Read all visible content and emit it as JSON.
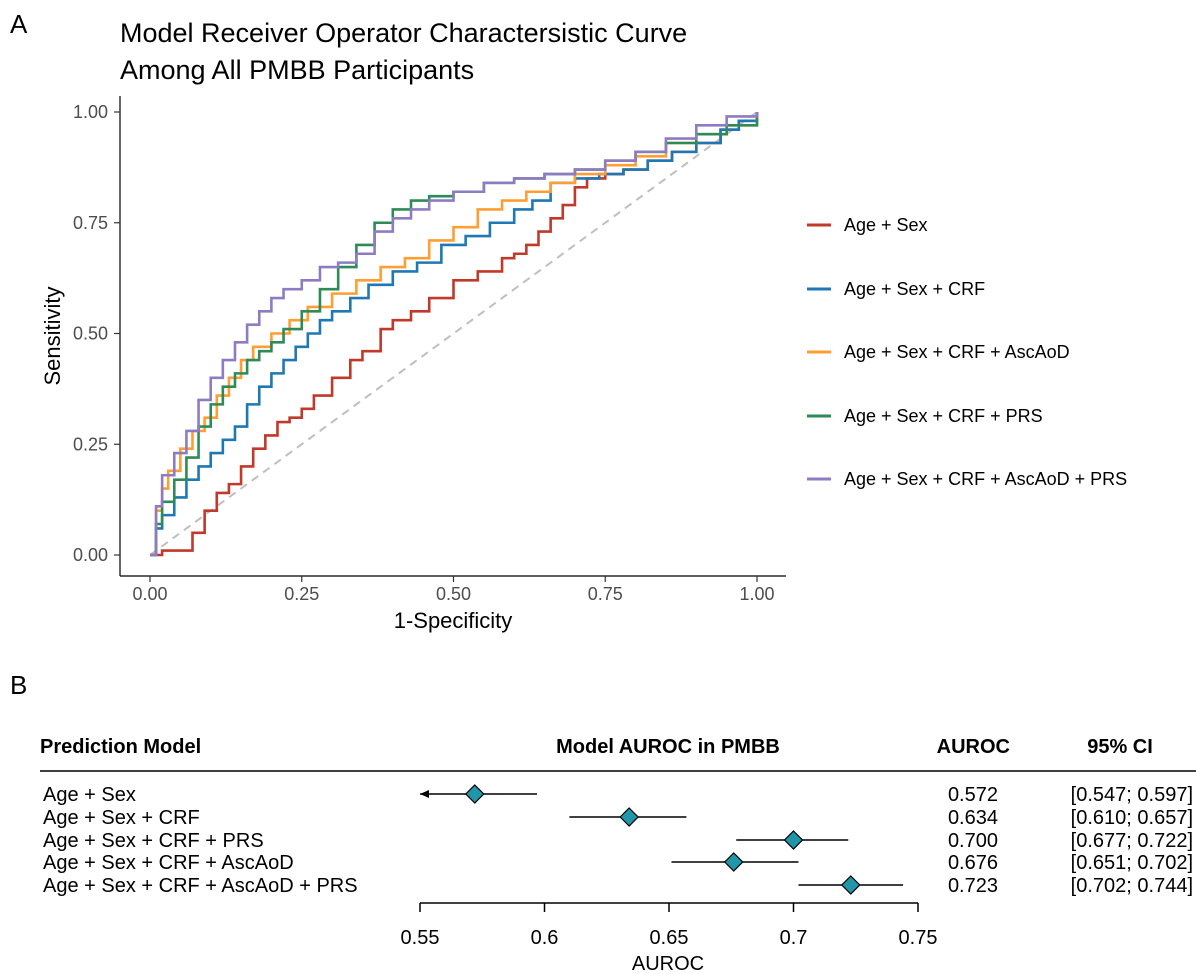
{
  "panel_a": {
    "letter": "A",
    "title_lines": [
      "Model Receiver Operator Charactersistic Curve",
      "Among All PMBB Participants"
    ]
  },
  "panel_b": {
    "letter": "B",
    "headers": {
      "model": "Prediction Model",
      "plot": "Model AUROC in PMBB",
      "auroc": "AUROC",
      "ci": "95% CI"
    }
  },
  "chart_data": [
    {
      "type": "line",
      "title": "Model Receiver Operator Charactersistic Curve Among All PMBB Participants",
      "xlabel": "1-Specificity",
      "ylabel": "Sensitivity",
      "xlim": [
        0,
        1
      ],
      "ylim": [
        0,
        1
      ],
      "x_ticks": [
        "0.00",
        "0.25",
        "0.50",
        "0.75",
        "1.00"
      ],
      "y_ticks": [
        "0.00",
        "0.25",
        "0.50",
        "0.75",
        "1.00"
      ],
      "grid": false,
      "legend_position": "right",
      "reference_line": {
        "x": [
          0,
          1
        ],
        "y": [
          0,
          1
        ],
        "style": "dashed",
        "color": "#bfbfbf"
      },
      "series": [
        {
          "name": "Age + Sex",
          "color": "#c0392b",
          "x": [
            0,
            0.02,
            0.04,
            0.055,
            0.07,
            0.09,
            0.11,
            0.13,
            0.15,
            0.17,
            0.19,
            0.21,
            0.23,
            0.25,
            0.27,
            0.3,
            0.33,
            0.35,
            0.38,
            0.4,
            0.43,
            0.46,
            0.5,
            0.54,
            0.58,
            0.6,
            0.62,
            0.64,
            0.66,
            0.68,
            0.7,
            0.72,
            0.75,
            0.78,
            0.82,
            0.86,
            0.9,
            0.94,
            0.97,
            1.0
          ],
          "y": [
            0,
            0.01,
            0.01,
            0.01,
            0.05,
            0.1,
            0.14,
            0.16,
            0.2,
            0.24,
            0.27,
            0.3,
            0.31,
            0.33,
            0.36,
            0.4,
            0.44,
            0.46,
            0.51,
            0.53,
            0.55,
            0.58,
            0.62,
            0.64,
            0.67,
            0.68,
            0.7,
            0.73,
            0.76,
            0.79,
            0.83,
            0.85,
            0.86,
            0.87,
            0.89,
            0.91,
            0.93,
            0.96,
            0.98,
            1.0
          ]
        },
        {
          "name": "Age + Sex + CRF",
          "color": "#1f78b4",
          "x": [
            0,
            0.01,
            0.02,
            0.04,
            0.06,
            0.08,
            0.1,
            0.12,
            0.14,
            0.16,
            0.18,
            0.2,
            0.22,
            0.24,
            0.26,
            0.28,
            0.3,
            0.33,
            0.36,
            0.4,
            0.44,
            0.48,
            0.52,
            0.56,
            0.6,
            0.63,
            0.66,
            0.7,
            0.74,
            0.78,
            0.82,
            0.86,
            0.9,
            0.94,
            0.97,
            1.0
          ],
          "y": [
            0,
            0.06,
            0.09,
            0.13,
            0.17,
            0.2,
            0.23,
            0.26,
            0.29,
            0.34,
            0.38,
            0.41,
            0.44,
            0.47,
            0.5,
            0.53,
            0.55,
            0.58,
            0.61,
            0.64,
            0.66,
            0.7,
            0.72,
            0.75,
            0.78,
            0.8,
            0.84,
            0.85,
            0.86,
            0.87,
            0.89,
            0.91,
            0.93,
            0.96,
            0.98,
            1.0
          ]
        },
        {
          "name": "Age + Sex + CRF + AscAoD",
          "color": "#ff9f33",
          "x": [
            0,
            0.01,
            0.02,
            0.03,
            0.05,
            0.07,
            0.09,
            0.11,
            0.13,
            0.15,
            0.17,
            0.2,
            0.23,
            0.26,
            0.3,
            0.34,
            0.38,
            0.42,
            0.46,
            0.5,
            0.54,
            0.58,
            0.62,
            0.66,
            0.7,
            0.75,
            0.8,
            0.85,
            0.9,
            0.95,
            1.0
          ],
          "y": [
            0,
            0.1,
            0.15,
            0.19,
            0.24,
            0.28,
            0.31,
            0.36,
            0.4,
            0.44,
            0.47,
            0.5,
            0.53,
            0.56,
            0.59,
            0.62,
            0.65,
            0.67,
            0.71,
            0.74,
            0.78,
            0.8,
            0.82,
            0.84,
            0.86,
            0.88,
            0.9,
            0.93,
            0.95,
            0.97,
            1.0
          ]
        },
        {
          "name": "Age + Sex + CRF + PRS",
          "color": "#2e8b57",
          "x": [
            0,
            0.01,
            0.02,
            0.04,
            0.06,
            0.08,
            0.1,
            0.12,
            0.14,
            0.16,
            0.18,
            0.2,
            0.22,
            0.25,
            0.28,
            0.31,
            0.34,
            0.37,
            0.4,
            0.43,
            0.46,
            0.5,
            0.55,
            0.6,
            0.65,
            0.7,
            0.75,
            0.8,
            0.85,
            0.9,
            0.95,
            1.0
          ],
          "y": [
            0,
            0.07,
            0.12,
            0.17,
            0.22,
            0.29,
            0.34,
            0.38,
            0.41,
            0.44,
            0.46,
            0.48,
            0.51,
            0.55,
            0.6,
            0.65,
            0.7,
            0.75,
            0.78,
            0.8,
            0.81,
            0.82,
            0.84,
            0.85,
            0.86,
            0.87,
            0.89,
            0.91,
            0.93,
            0.95,
            0.97,
            1.0
          ]
        },
        {
          "name": "Age + Sex + CRF + AscAoD + PRS",
          "color": "#8e7cc3",
          "x": [
            0,
            0.01,
            0.02,
            0.04,
            0.06,
            0.08,
            0.1,
            0.12,
            0.14,
            0.16,
            0.18,
            0.2,
            0.22,
            0.25,
            0.28,
            0.31,
            0.34,
            0.37,
            0.4,
            0.43,
            0.46,
            0.5,
            0.55,
            0.6,
            0.65,
            0.7,
            0.75,
            0.8,
            0.85,
            0.9,
            0.95,
            1.0
          ],
          "y": [
            0,
            0.11,
            0.18,
            0.23,
            0.28,
            0.35,
            0.4,
            0.44,
            0.48,
            0.52,
            0.55,
            0.58,
            0.6,
            0.62,
            0.65,
            0.66,
            0.68,
            0.73,
            0.76,
            0.78,
            0.8,
            0.82,
            0.84,
            0.85,
            0.86,
            0.87,
            0.89,
            0.91,
            0.94,
            0.97,
            0.99,
            1.0
          ]
        }
      ]
    },
    {
      "type": "scatter",
      "subtype": "forest",
      "title": "Model AUROC in PMBB",
      "xlabel": "AUROC",
      "xlim": [
        0.55,
        0.75
      ],
      "x_ticks": [
        "0.55",
        "0.6",
        "0.65",
        "0.7",
        "0.75"
      ],
      "marker_color": "#2196a8",
      "rows": [
        {
          "model": "Age + Sex",
          "auroc": 0.572,
          "lower": 0.547,
          "upper": 0.597,
          "auroc_label": "0.572",
          "ci_label": "[0.547; 0.597]",
          "truncated_left": true
        },
        {
          "model": "Age + Sex + CRF",
          "auroc": 0.634,
          "lower": 0.61,
          "upper": 0.657,
          "auroc_label": "0.634",
          "ci_label": "[0.610; 0.657]",
          "truncated_left": false
        },
        {
          "model": "Age + Sex + CRF + PRS",
          "auroc": 0.7,
          "lower": 0.677,
          "upper": 0.722,
          "auroc_label": "0.700",
          "ci_label": "[0.677; 0.722]",
          "truncated_left": false
        },
        {
          "model": "Age + Sex + CRF + AscAoD",
          "auroc": 0.676,
          "lower": 0.651,
          "upper": 0.702,
          "auroc_label": "0.676",
          "ci_label": "[0.651; 0.702]",
          "truncated_left": false
        },
        {
          "model": "Age + Sex + CRF + AscAoD + PRS",
          "auroc": 0.723,
          "lower": 0.702,
          "upper": 0.744,
          "auroc_label": "0.723",
          "ci_label": "[0.702; 0.744]",
          "truncated_left": false
        }
      ]
    }
  ]
}
